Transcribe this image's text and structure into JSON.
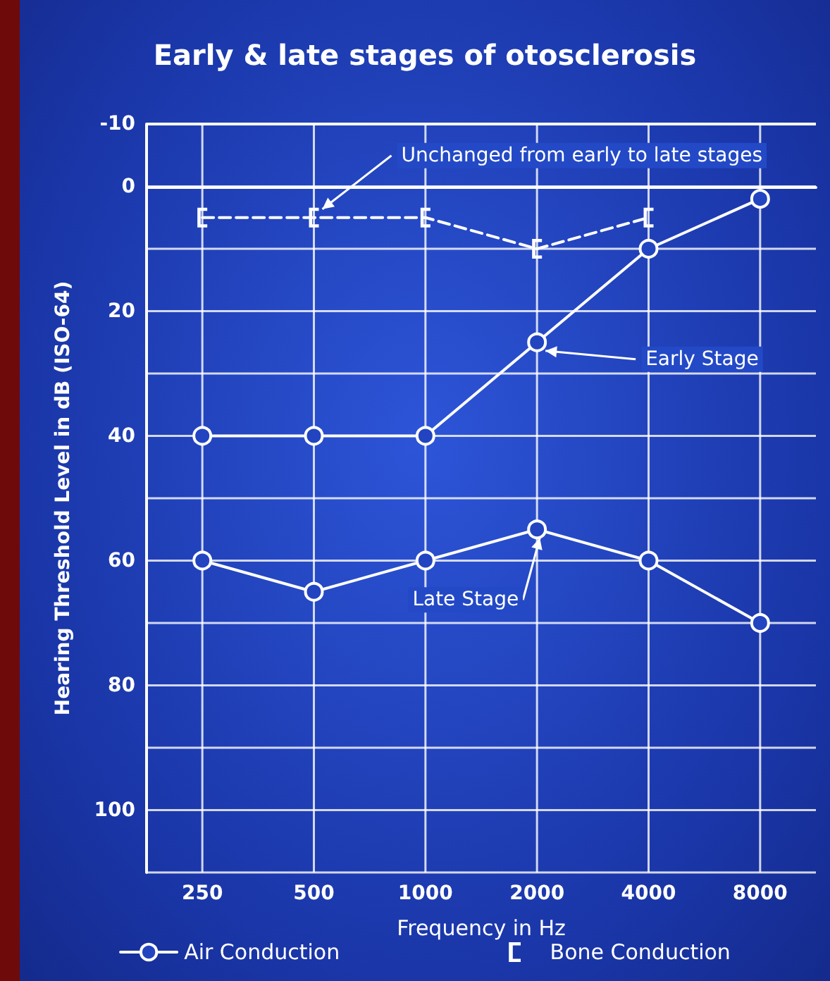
{
  "chart_data": {
    "type": "line",
    "title": "Early & late stages of otosclerosis",
    "xlabel": "Frequency in Hz",
    "ylabel": "Hearing Threshold Level in dB (ISO-64)",
    "categories": [
      "250",
      "500",
      "1000",
      "2000",
      "4000",
      "8000"
    ],
    "series": [
      {
        "name": "Air Conduction",
        "color": "#ffffff",
        "marker": "circle",
        "line_style": "solid",
        "values": [
          40,
          40,
          40,
          25,
          10,
          2
        ]
      },
      {
        "color": "#ffffff",
        "marker": "circle",
        "line_style": "solid",
        "values": [
          60,
          65,
          60,
          55,
          60,
          70
        ]
      },
      {
        "name": "Bone Conduction",
        "color": "#ffffff",
        "marker": "cross",
        "line_style": "dashed",
        "values": [
          5,
          5,
          5,
          10,
          5,
          null
        ]
      }
    ],
    "ylim": [
      110,
      -10
    ],
    "yticks": [
      -10,
      0,
      20,
      40,
      60,
      80,
      100
    ],
    "grid": true,
    "legend": "bottom",
    "annotations": [
      {
        "text": "Unchanged from early to late stages",
        "x": "500",
        "y": 5
      },
      {
        "text": "Early Stage",
        "x": "2000",
        "y": 25
      },
      {
        "text": "Late Stage",
        "x": "2000",
        "y": 55
      }
    ]
  }
}
